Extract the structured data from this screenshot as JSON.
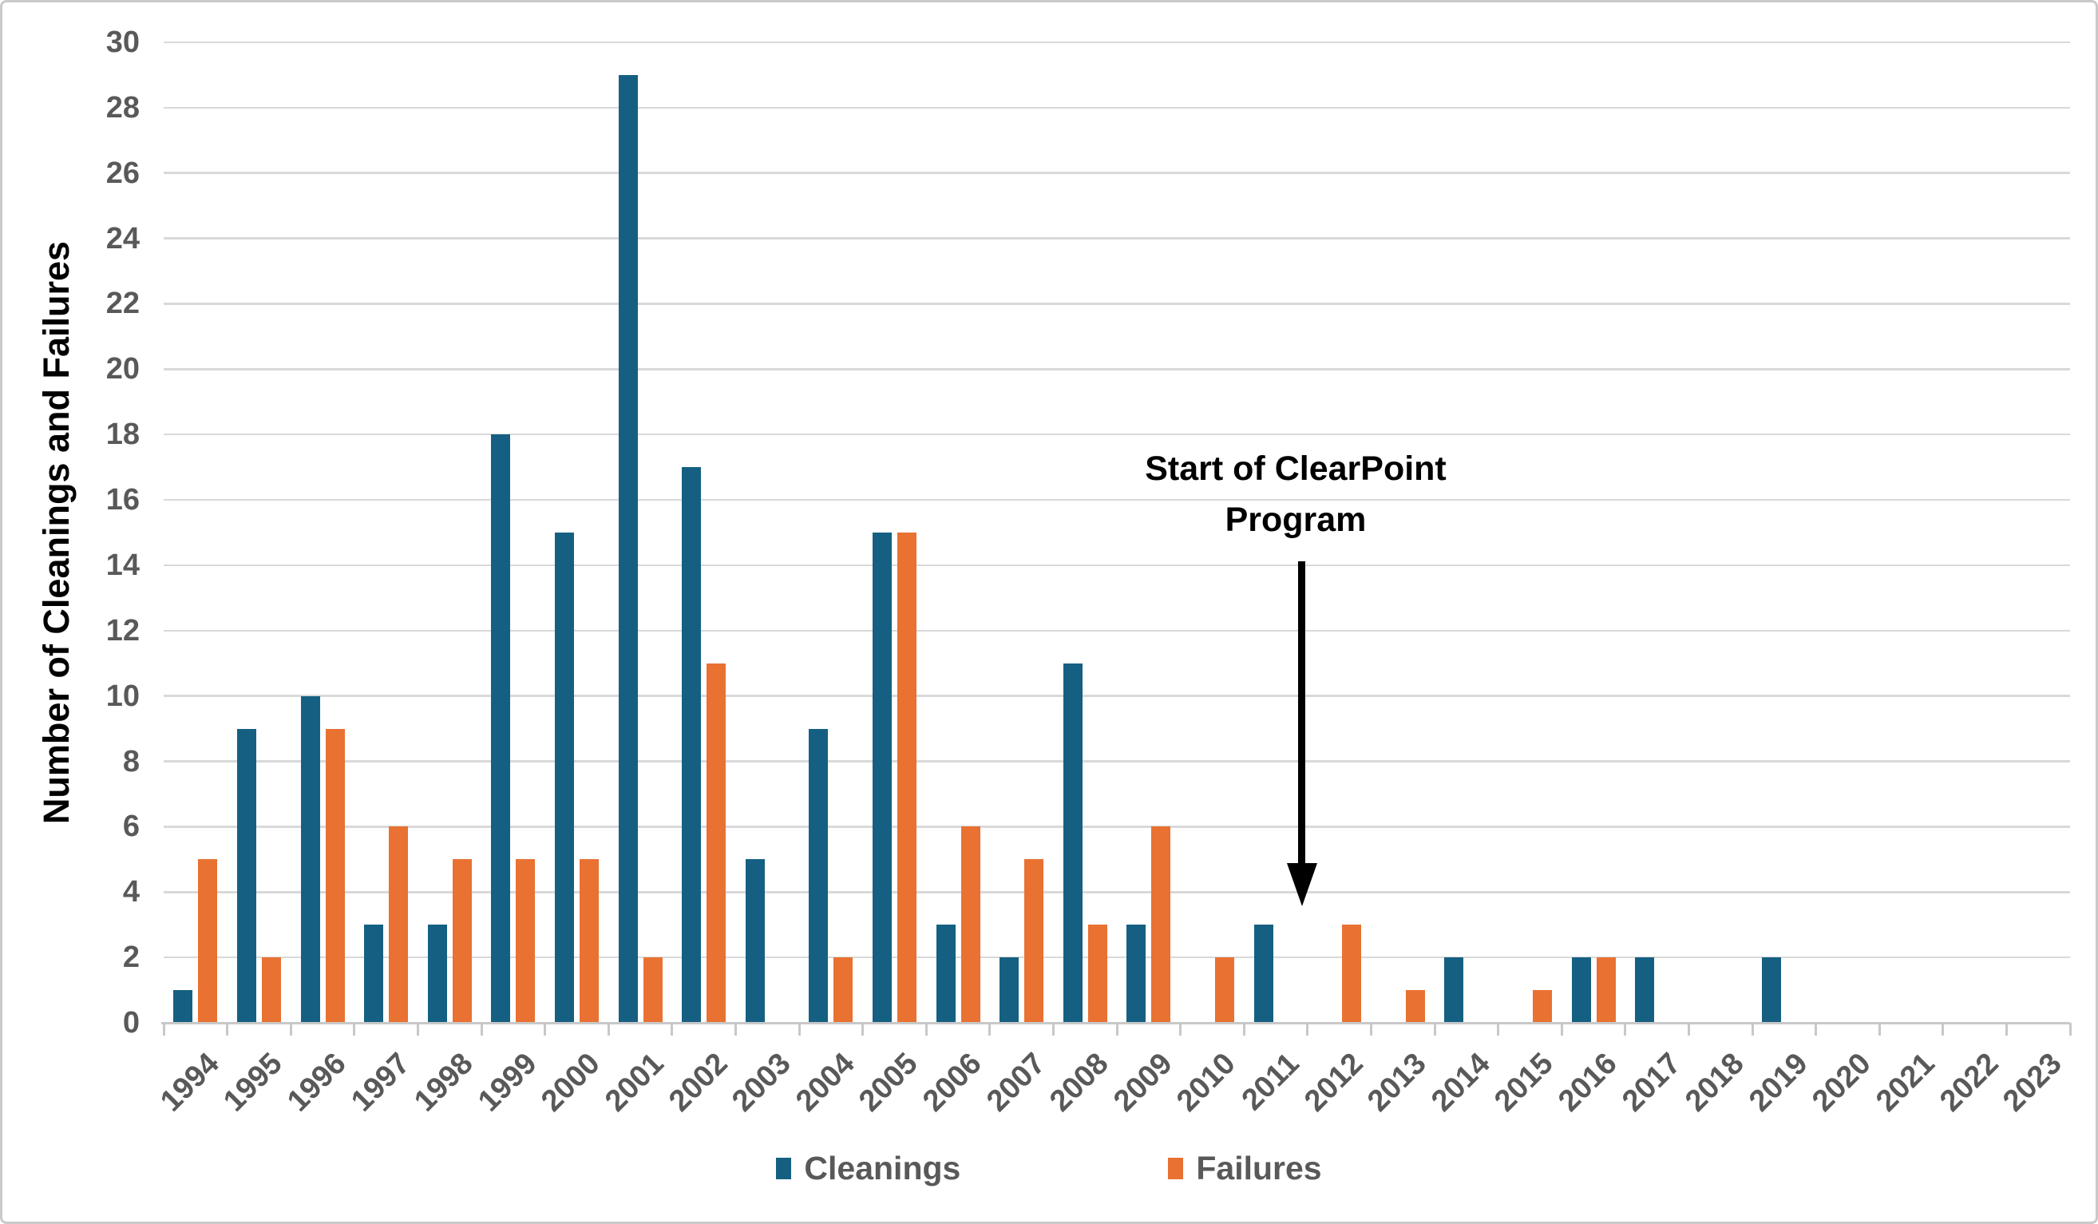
{
  "chart_data": {
    "type": "bar",
    "title": "",
    "xlabel": "",
    "ylabel": "Number of Cleanings and Failures",
    "ylim": [
      0,
      30
    ],
    "ytick_step": 2,
    "yticks": [
      0,
      2,
      4,
      6,
      8,
      10,
      12,
      14,
      16,
      18,
      20,
      22,
      24,
      26,
      28,
      30
    ],
    "grid": true,
    "legend_position": "bottom-center",
    "categories": [
      "1994",
      "1995",
      "1996",
      "1997",
      "1998",
      "1999",
      "2000",
      "2001",
      "2002",
      "2003",
      "2004",
      "2005",
      "2006",
      "2007",
      "2008",
      "2009",
      "2010",
      "2011",
      "2012",
      "2013",
      "2014",
      "2015",
      "2016",
      "2017",
      "2018",
      "2019",
      "2020",
      "2021",
      "2022",
      "2023"
    ],
    "series": [
      {
        "name": "Cleanings",
        "color": "#156082",
        "values": [
          1,
          9,
          10,
          3,
          3,
          18,
          15,
          29,
          17,
          5,
          9,
          15,
          3,
          2,
          11,
          3,
          0,
          3,
          0,
          0,
          2,
          0,
          2,
          2,
          0,
          2,
          0,
          0,
          0,
          0
        ]
      },
      {
        "name": "Failures",
        "color": "#E97132",
        "values": [
          5,
          2,
          9,
          6,
          5,
          5,
          5,
          2,
          11,
          0,
          2,
          15,
          6,
          5,
          3,
          6,
          2,
          0,
          3,
          1,
          0,
          1,
          2,
          0,
          0,
          0,
          0,
          0,
          0,
          0
        ]
      }
    ],
    "annotation": {
      "line1": "Start of ClearPoint",
      "line2": "Program",
      "arrow_points_between": [
        "2011",
        "2012"
      ],
      "color": "#000000"
    }
  }
}
